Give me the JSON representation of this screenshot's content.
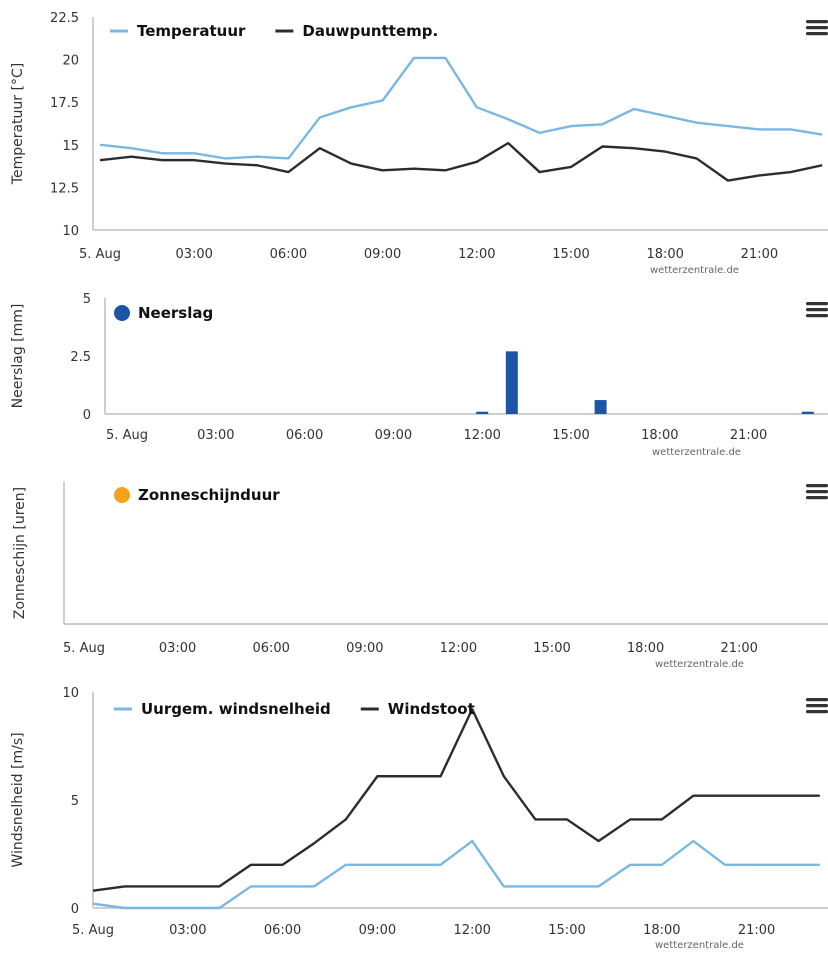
{
  "credit": "wetterzentrale.de",
  "menu_icon": "hamburger-menu-icon",
  "x_ticks": [
    "5. Aug",
    "03:00",
    "06:00",
    "09:00",
    "12:00",
    "15:00",
    "18:00",
    "21:00"
  ],
  "colors": {
    "light_blue": "#7ab8e4",
    "dark": "#2a2d30",
    "bar_blue": "#1c54a8",
    "orange": "#f4a21c",
    "axis": "#bdbdbd"
  },
  "chart_data": [
    {
      "type": "line",
      "ylabel": "Temperatuur [°C]",
      "ylim": [
        10,
        22.5
      ],
      "y_ticks": [
        "10",
        "12.5",
        "15",
        "17.5",
        "20",
        "22.5"
      ],
      "x_hours": [
        0,
        1,
        2,
        3,
        4,
        5,
        6,
        7,
        8,
        9,
        10,
        11,
        12,
        13,
        14,
        15,
        16,
        17,
        18,
        19,
        20,
        21,
        22,
        23
      ],
      "series": [
        {
          "name": "Temperatuur",
          "color": "#7ab8e4",
          "values": [
            15.0,
            14.8,
            14.5,
            14.5,
            14.2,
            14.3,
            14.2,
            16.6,
            17.2,
            17.6,
            20.1,
            20.1,
            17.2,
            16.5,
            15.7,
            16.1,
            16.2,
            17.1,
            16.7,
            16.3,
            16.1,
            15.9,
            15.9,
            15.6
          ]
        },
        {
          "name": "Dauwpunttemp.",
          "color": "#2a2d30",
          "values": [
            14.1,
            14.3,
            14.1,
            14.1,
            13.9,
            13.8,
            13.4,
            14.8,
            13.9,
            13.5,
            13.6,
            13.5,
            14.0,
            15.1,
            13.4,
            13.7,
            14.9,
            14.8,
            14.6,
            14.2,
            12.9,
            13.2,
            13.4,
            13.8
          ]
        }
      ]
    },
    {
      "type": "bar",
      "ylabel": "Neerslag [mm]",
      "ylim": [
        0,
        5
      ],
      "y_ticks": [
        "0",
        "2.5",
        "5"
      ],
      "series": [
        {
          "name": "Neerslag",
          "color": "#1c54a8",
          "x_hours": [
            12,
            13,
            16,
            23
          ],
          "values": [
            0.1,
            2.7,
            0.6,
            0.1
          ]
        }
      ]
    },
    {
      "type": "bar",
      "ylabel": "Zonneschijn [uren]",
      "series": [
        {
          "name": "Zonneschijnduur",
          "color": "#f4a21c",
          "x_hours": [],
          "values": []
        }
      ]
    },
    {
      "type": "line",
      "ylabel": "Windsnelheid [m/s]",
      "ylim": [
        0,
        10
      ],
      "y_ticks": [
        "0",
        "5",
        "10"
      ],
      "x_hours": [
        0,
        1,
        2,
        3,
        4,
        5,
        6,
        7,
        8,
        9,
        10,
        11,
        12,
        13,
        14,
        15,
        16,
        17,
        18,
        19,
        20,
        21,
        22,
        23
      ],
      "series": [
        {
          "name": "Uurgem. windsnelheid",
          "color": "#7ab8e4",
          "values": [
            0.2,
            0.0,
            0.0,
            0.0,
            0.0,
            1.0,
            1.0,
            1.0,
            2.0,
            2.0,
            2.0,
            2.0,
            3.1,
            1.0,
            1.0,
            1.0,
            1.0,
            2.0,
            2.0,
            3.1,
            2.0,
            2.0,
            2.0,
            2.0
          ]
        },
        {
          "name": "Windstoot",
          "color": "#2a2d30",
          "values": [
            0.8,
            1.0,
            1.0,
            1.0,
            1.0,
            2.0,
            2.0,
            3.0,
            4.1,
            6.1,
            6.1,
            6.1,
            9.2,
            6.1,
            4.1,
            4.1,
            3.1,
            4.1,
            4.1,
            5.2,
            5.2,
            5.2,
            5.2,
            5.2
          ]
        }
      ]
    }
  ]
}
